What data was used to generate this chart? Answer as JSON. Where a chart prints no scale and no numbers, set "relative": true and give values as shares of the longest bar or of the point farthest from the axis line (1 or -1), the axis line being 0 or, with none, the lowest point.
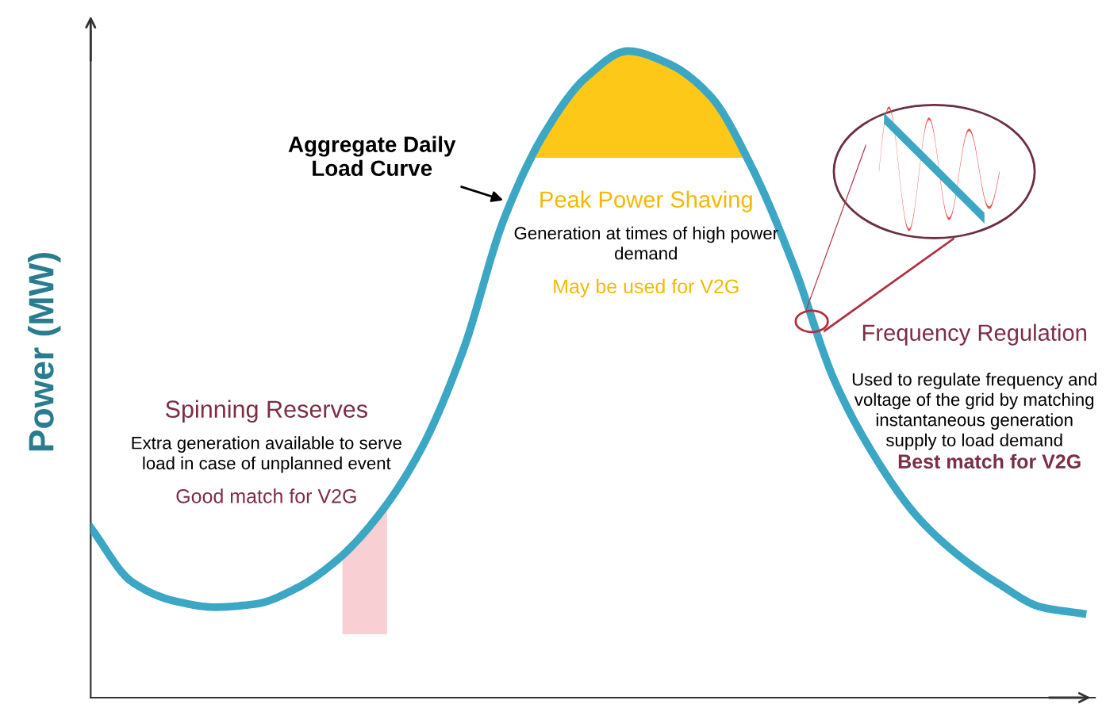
{
  "chart_data": {
    "type": "line",
    "relative": true,
    "ylabel": "Power (MW)",
    "categories": [
      null,
      null,
      null,
      null,
      null,
      null,
      null,
      null,
      null,
      null,
      null,
      null,
      null,
      null,
      null,
      null,
      null,
      null,
      null,
      null,
      null,
      null,
      null,
      null,
      null
    ],
    "series": [
      {
        "color": "#3ba7c4",
        "values": [
          0.263,
          0.179,
          0.15,
          0.14,
          0.145,
          0.17,
          0.215,
          0.285,
          0.385,
          0.535,
          0.74,
          0.875,
          0.96,
          1,
          0.98,
          0.93,
          0.82,
          0.67,
          0.49,
          0.37,
          0.28,
          0.22,
          0.175,
          0.14,
          0.13
        ]
      }
    ],
    "annotations": [
      "Aggregate Daily\nLoad Curve",
      "Spinning Reserves",
      "Extra generation available to serve\nload in case of unplanned event",
      "Good match for V2G",
      "Peak Power Shaving",
      "Generation at times of high power\ndemand",
      "May be used for V2G",
      "Frequency Regulation",
      "Used to regulate frequency and\nvoltage of the grid by matching\ninstantaneous generation\nsupply to load demand",
      "Best match for V2G"
    ],
    "legend": false,
    "marker": "none",
    "line_style": "solid"
  }
}
